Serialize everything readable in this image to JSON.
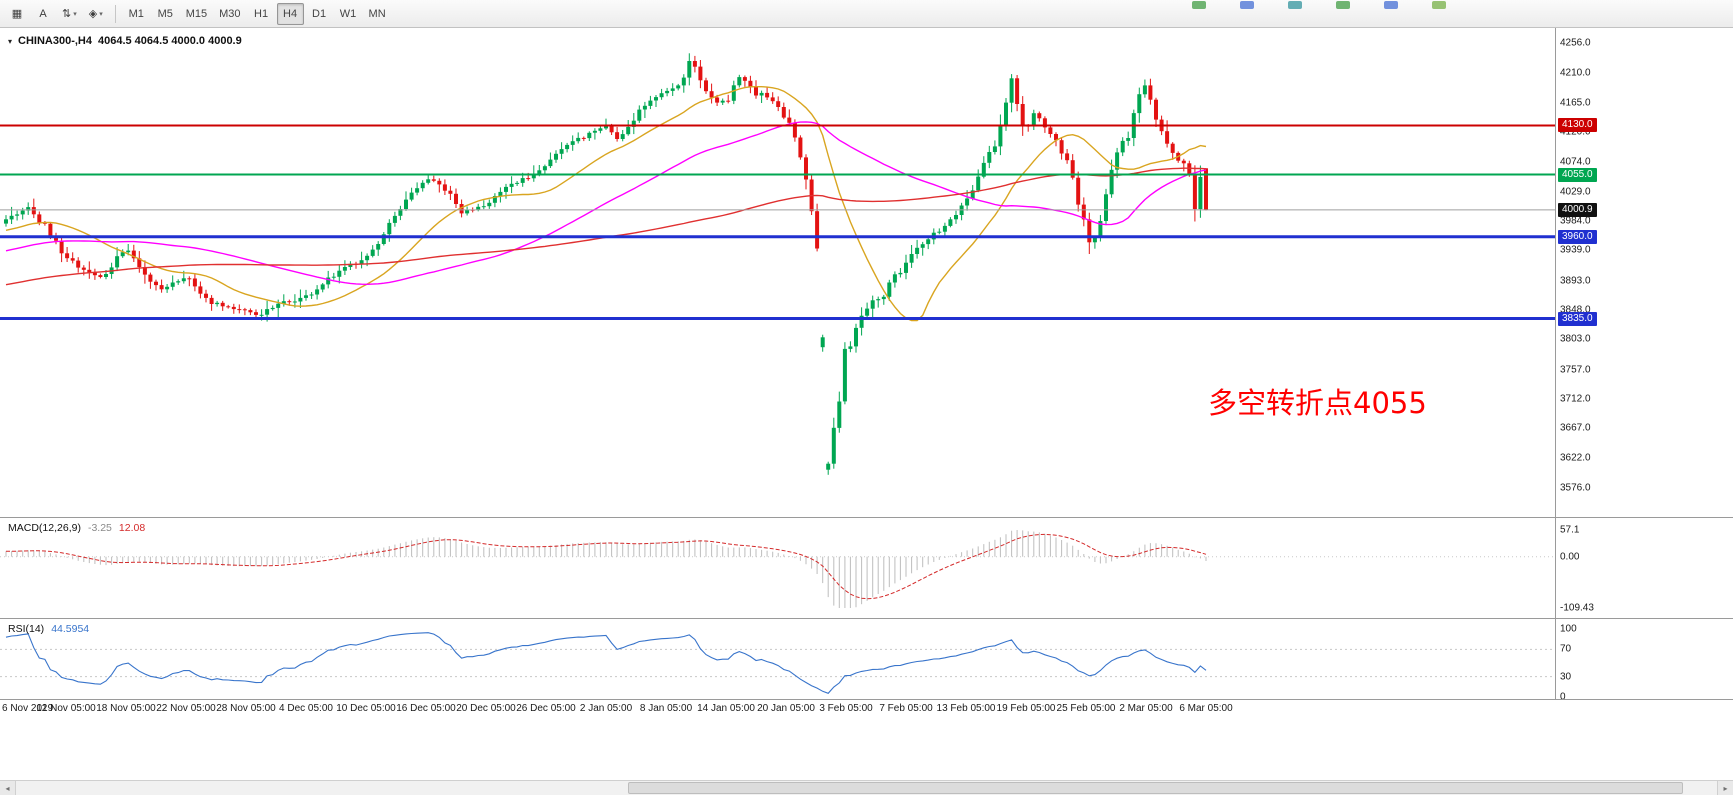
{
  "toolbar": {
    "left_icons": [
      {
        "name": "windows-grid-icon",
        "glyph": "▦"
      },
      {
        "name": "text-label-tool-button",
        "glyph": "A"
      },
      {
        "name": "cursor-tools-dropdown",
        "glyph": "⇅",
        "caret": "▾"
      },
      {
        "name": "shapes-tools-dropdown",
        "glyph": "◈",
        "caret": "▾"
      }
    ],
    "timeframes": [
      {
        "label": "M1",
        "active": false
      },
      {
        "label": "M5",
        "active": false
      },
      {
        "label": "M15",
        "active": false
      },
      {
        "label": "M30",
        "active": false
      },
      {
        "label": "H1",
        "active": false
      },
      {
        "label": "H4",
        "active": true
      },
      {
        "label": "D1",
        "active": false
      },
      {
        "label": "W1",
        "active": false
      },
      {
        "label": "MN",
        "active": false
      }
    ],
    "right_mini_icons": [
      {
        "color": "#58a85a"
      },
      {
        "color": "#5a7fd8"
      },
      {
        "color": "#4aa0a8"
      },
      {
        "color": "#58a85a"
      },
      {
        "color": "#5a7fd8"
      },
      {
        "color": "#86b85c"
      }
    ]
  },
  "chart": {
    "title_symbol_period": "CHINA300-,H4",
    "title_ohlc": "4064.5 4064.5 4000.0 4000.9",
    "annotation": "多空转折点4055"
  },
  "scrollbar": {
    "left_arrow": "◂",
    "right_arrow": "▸"
  },
  "chart_data": {
    "type": "candlestick",
    "symbol": "CHINA300-",
    "period": "H4",
    "current_bar": {
      "open": 4064.5,
      "high": 4064.5,
      "low": 4000.0,
      "close": 4000.9
    },
    "candle_colors": {
      "up": "#00a651",
      "down": "#e31212"
    },
    "bars_visible": 216,
    "bars_prehistory": 130,
    "y_axis_ticks": [
      "4256.0",
      "4210.0",
      "4165.0",
      "4120.0",
      "4074.0",
      "4029.0",
      "3984.0",
      "3939.0",
      "3893.0",
      "3848.0",
      "3803.0",
      "3757.0",
      "3712.0",
      "3667.0",
      "3622.0",
      "3576.0"
    ],
    "x_axis_labels": [
      "6 Nov 2019",
      "12 Nov 05:00",
      "18 Nov 05:00",
      "22 Nov 05:00",
      "28 Nov 05:00",
      "4 Dec 05:00",
      "10 Dec 05:00",
      "16 Dec 05:00",
      "20 Dec 05:00",
      "26 Dec 05:00",
      "2 Jan 05:00",
      "8 Jan 05:00",
      "14 Jan 05:00",
      "20 Jan 05:00",
      "3 Feb 05:00",
      "7 Feb 05:00",
      "13 Feb 05:00",
      "19 Feb 05:00",
      "25 Feb 05:00",
      "2 Mar 05:00",
      "6 Mar 05:00"
    ],
    "levels": [
      {
        "value": 4130.0,
        "label": "4130.0",
        "color": "#cc0000",
        "badge": "#cc0000",
        "width": 2
      },
      {
        "value": 4055.0,
        "label": "4055.0",
        "color": "#00a651",
        "badge": "#00a651",
        "width": 2
      },
      {
        "value": 4000.9,
        "label": "4000.9",
        "color": "#9f9f9f",
        "badge": "#111111",
        "width": 1
      },
      {
        "value": 3960.0,
        "label": "3960.0",
        "color": "#2030d0",
        "badge": "#2030d0",
        "width": 3
      },
      {
        "value": 3835.0,
        "label": "3835.0",
        "color": "#2030d0",
        "badge": "#2030d0",
        "width": 3
      }
    ],
    "moving_averages": [
      {
        "period": 18,
        "color": "#d9a520"
      },
      {
        "period": 55,
        "color": "#ff00ff"
      },
      {
        "period": 120,
        "color": "#e03030"
      }
    ],
    "price_path": [
      [
        -0.6,
        3800
      ],
      [
        -0.5,
        3815
      ],
      [
        -0.4,
        3838
      ],
      [
        -0.3,
        3876
      ],
      [
        -0.22,
        3902
      ],
      [
        -0.15,
        3930
      ],
      [
        -0.08,
        3956
      ],
      [
        -0.03,
        3972
      ],
      [
        0.0,
        3985
      ],
      [
        0.02,
        4008
      ],
      [
        0.04,
        3950
      ],
      [
        0.06,
        3915
      ],
      [
        0.08,
        3896
      ],
      [
        0.1,
        3944
      ],
      [
        0.115,
        3902
      ],
      [
        0.13,
        3880
      ],
      [
        0.15,
        3900
      ],
      [
        0.17,
        3862
      ],
      [
        0.19,
        3850
      ],
      [
        0.21,
        3840
      ],
      [
        0.23,
        3858
      ],
      [
        0.25,
        3868
      ],
      [
        0.27,
        3895
      ],
      [
        0.29,
        3920
      ],
      [
        0.31,
        3946
      ],
      [
        0.33,
        4004
      ],
      [
        0.35,
        4050
      ],
      [
        0.365,
        4034
      ],
      [
        0.38,
        3996
      ],
      [
        0.4,
        4012
      ],
      [
        0.42,
        4036
      ],
      [
        0.44,
        4058
      ],
      [
        0.46,
        4090
      ],
      [
        0.48,
        4112
      ],
      [
        0.5,
        4130
      ],
      [
        0.51,
        4108
      ],
      [
        0.53,
        4160
      ],
      [
        0.55,
        4182
      ],
      [
        0.565,
        4206
      ],
      [
        0.572,
        4238
      ],
      [
        0.578,
        4196
      ],
      [
        0.59,
        4168
      ],
      [
        0.6,
        4164
      ],
      [
        0.61,
        4208
      ],
      [
        0.625,
        4180
      ],
      [
        0.64,
        4164
      ],
      [
        0.655,
        4122
      ],
      [
        0.665,
        4076
      ],
      [
        0.672,
        4002
      ],
      [
        0.677,
        3940
      ],
      [
        0.68,
        3848
      ],
      [
        0.684,
        3592
      ],
      [
        0.688,
        3648
      ],
      [
        0.694,
        3700
      ],
      [
        0.7,
        3790
      ],
      [
        0.715,
        3850
      ],
      [
        0.73,
        3868
      ],
      [
        0.75,
        3920
      ],
      [
        0.77,
        3958
      ],
      [
        0.79,
        3988
      ],
      [
        0.81,
        4042
      ],
      [
        0.828,
        4120
      ],
      [
        0.838,
        4200
      ],
      [
        0.848,
        4120
      ],
      [
        0.858,
        4150
      ],
      [
        0.872,
        4112
      ],
      [
        0.886,
        4062
      ],
      [
        0.898,
        3992
      ],
      [
        0.904,
        3936
      ],
      [
        0.914,
        4002
      ],
      [
        0.924,
        4075
      ],
      [
        0.938,
        4130
      ],
      [
        0.948,
        4196
      ],
      [
        0.958,
        4150
      ],
      [
        0.968,
        4092
      ],
      [
        0.978,
        4076
      ],
      [
        0.985,
        4070
      ],
      [
        0.99,
        3990
      ],
      [
        0.996,
        4058
      ],
      [
        1.0,
        4000.9
      ]
    ],
    "indicators": {
      "macd": {
        "label": "MACD(12,26,9)",
        "fast": 12,
        "slow": 26,
        "signal": 9,
        "value_main": "-3.25",
        "value_signal": "12.08",
        "max": 57.1,
        "min": -109.43,
        "ticks": [
          {
            "v": 57.1,
            "label": "57.1"
          },
          {
            "v": 0,
            "label": "0.00"
          },
          {
            "v": -109.43,
            "label": "-109.43"
          }
        ],
        "histogram_color": "#bdbdbd",
        "signal_color": "#d42a2a"
      },
      "rsi": {
        "label": "RSI(14)",
        "period": 14,
        "value": "44.5954",
        "ticks": [
          {
            "v": 100,
            "label": "100"
          },
          {
            "v": 70,
            "label": "70"
          },
          {
            "v": 30,
            "label": "30"
          },
          {
            "v": 0,
            "label": "0"
          }
        ],
        "levels": [
          70,
          30
        ],
        "color": "#3874cb"
      }
    }
  }
}
